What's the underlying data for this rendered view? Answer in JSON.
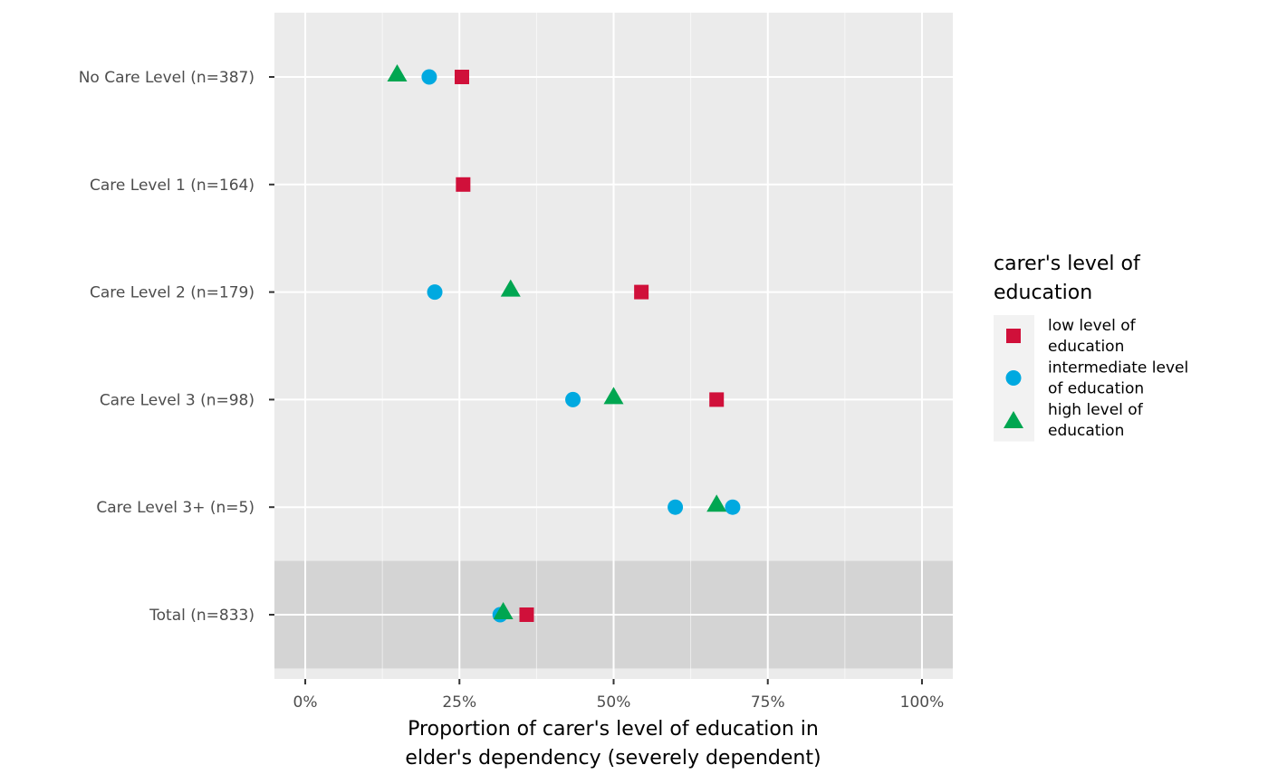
{
  "chart_data": {
    "type": "scatter",
    "xlabel": [
      "Proportion of carer's level of education in",
      "elder's dependency (severely dependent)"
    ],
    "ylabel": "",
    "xlim": [
      -0.05,
      1.05
    ],
    "x_ticks": [
      0,
      0.25,
      0.5,
      0.75,
      1.0
    ],
    "x_tick_labels": [
      "0%",
      "25%",
      "50%",
      "75%",
      "100%"
    ],
    "categories": [
      "No Care Level (n=387)",
      "Care Level 1 (n=164)",
      "Care Level 2 (n=179)",
      "Care Level 3 (n=98)",
      "Care Level 3+ (n=5)",
      "Total (n=833)"
    ],
    "highlighted_category": "Total (n=833)",
    "grid": true,
    "legend": {
      "title": [
        "carer's level of",
        "education"
      ],
      "position": "right",
      "entries": [
        {
          "label": [
            "low level of",
            "education"
          ],
          "shape": "square",
          "color": "#D0103A"
        },
        {
          "label": [
            "intermediate level",
            "of education"
          ],
          "shape": "circle",
          "color": "#00A9E0"
        },
        {
          "label": [
            "high level of",
            "education"
          ],
          "shape": "triangle",
          "color": "#00A651"
        }
      ]
    },
    "series": [
      {
        "name": "low level of education",
        "shape": "square",
        "color": "#D0103A",
        "points": [
          {
            "category": "No Care Level (n=387)",
            "x": 0.254
          },
          {
            "category": "Care Level 1 (n=164)",
            "x": 0.256
          },
          {
            "category": "Care Level 2 (n=179)",
            "x": 0.545
          },
          {
            "category": "Care Level 3 (n=98)",
            "x": 0.667
          },
          {
            "category": "Total (n=833)",
            "x": 0.359
          }
        ]
      },
      {
        "name": "intermediate level of education",
        "shape": "circle",
        "color": "#00A9E0",
        "points": [
          {
            "category": "No Care Level (n=387)",
            "x": 0.201
          },
          {
            "category": "Care Level 2 (n=179)",
            "x": 0.21
          },
          {
            "category": "Care Level 3 (n=98)",
            "x": 0.434
          },
          {
            "category": "Care Level 3+ (n=5)",
            "x": 0.6
          },
          {
            "category": "Care Level 3+ (n=5)",
            "x": 0.693
          },
          {
            "category": "Total (n=833)",
            "x": 0.316
          }
        ]
      },
      {
        "name": "high level of education",
        "shape": "triangle",
        "color": "#00A651",
        "points": [
          {
            "category": "No Care Level (n=387)",
            "x": 0.149
          },
          {
            "category": "Care Level 2 (n=179)",
            "x": 0.333
          },
          {
            "category": "Care Level 3 (n=98)",
            "x": 0.5
          },
          {
            "category": "Care Level 3+ (n=5)",
            "x": 0.667
          },
          {
            "category": "Total (n=833)",
            "x": 0.321
          }
        ]
      }
    ]
  }
}
